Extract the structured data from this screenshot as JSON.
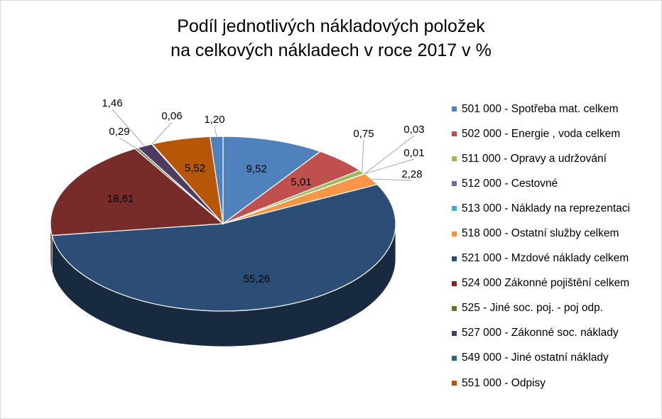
{
  "chart_data": {
    "type": "pie",
    "title": "Podíl jednotlivých nákladových položek na celkových nákladech v roce 2017 v %",
    "title_lines": [
      "Podíl jednotlivých nákladových položek",
      "na celkových nákladech v roce 2017 v %"
    ],
    "style": "3d-pie",
    "legend_position": "right",
    "slices": [
      {
        "name": "501 000 - Spotřeba mat. celkem",
        "value": 9.52,
        "label": "9,52",
        "color": "#4f81bd"
      },
      {
        "name": "502 000 - Energie , voda celkem",
        "value": 5.01,
        "label": "5,01",
        "color": "#c0504d"
      },
      {
        "name": "511 000 - Opravy a udržování",
        "value": 0.75,
        "label": "0,75",
        "color": "#9bbb59"
      },
      {
        "name": "512 000 - Cestovné",
        "value": 0.03,
        "label": "0,03",
        "color": "#8064a2"
      },
      {
        "name": "513 000 - Náklady na reprezentaci",
        "value": 0.01,
        "label": "0,01",
        "color": "#4bacc6"
      },
      {
        "name": "518 000 - Ostatní služby celkem",
        "value": 2.28,
        "label": "2,28",
        "color": "#f79646"
      },
      {
        "name": "521 000 - Mzdové náklady celkem",
        "value": 55.26,
        "label": "55,26",
        "color": "#2c4d75"
      },
      {
        "name": "524 000 Zákonné pojištění celkem",
        "value": 18.61,
        "label": "18,61",
        "color": "#772c2a"
      },
      {
        "name": "525 - Jiné soc. poj. - poj odp.",
        "value": 0.29,
        "label": "0,29",
        "color": "#5f7530"
      },
      {
        "name": "527 000 - Zákonné soc. náklady",
        "value": 1.46,
        "label": "1,46",
        "color": "#4d3b62"
      },
      {
        "name": "549 000 - Jiné ostatní náklady",
        "value": 0.06,
        "label": "0,06",
        "color": "#276a7c"
      },
      {
        "name": "551 000 - Odpisy",
        "value": 5.52,
        "label": "5,52",
        "color": "#b65708"
      },
      {
        "name": "",
        "value": 1.2,
        "label": "1,20",
        "color": "#4f81bd"
      }
    ]
  }
}
